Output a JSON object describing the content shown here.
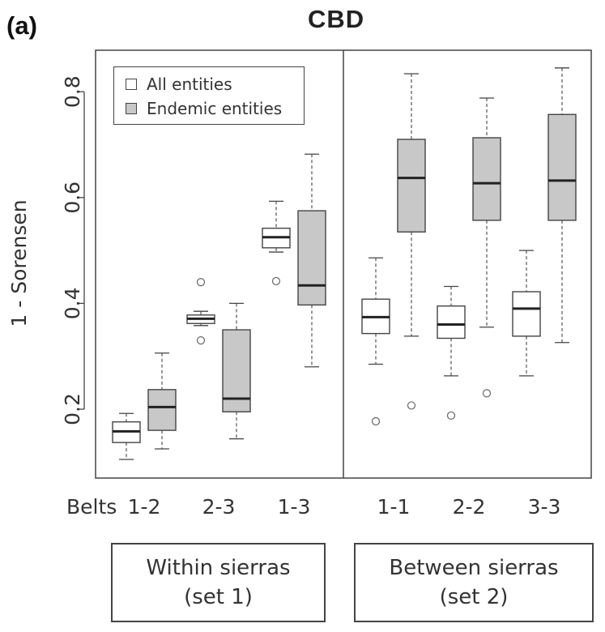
{
  "panel_label": "(a)",
  "chart_data": {
    "type": "box",
    "title": "CBD",
    "xlabel": "Belts",
    "ylabel": "1 - Sorensen",
    "ylim": [
      0.1,
      0.85
    ],
    "yticks": [
      0.2,
      0.4,
      0.6,
      0.8
    ],
    "ytick_labels": [
      "0.2",
      "0.4",
      "0.6",
      "0.8"
    ],
    "categories": [
      "1-2",
      "2-3",
      "1-3",
      "1-1",
      "2-2",
      "3-3"
    ],
    "legend": [
      {
        "name": "All entities",
        "color": "#ffffff"
      },
      {
        "name": "Endemic entities",
        "color": "#c8c8c8"
      }
    ],
    "legend_placement": "top-left",
    "series": [
      {
        "name": "All entities",
        "color": "#ffffff",
        "boxes": [
          {
            "category": "1-2",
            "min": 0.105,
            "q1": 0.137,
            "median": 0.158,
            "q3": 0.176,
            "max": 0.192,
            "outliers": []
          },
          {
            "category": "2-3",
            "min": 0.358,
            "q1": 0.362,
            "median": 0.371,
            "q3": 0.378,
            "max": 0.385,
            "outliers": [
              0.44,
              0.33
            ]
          },
          {
            "category": "1-3",
            "min": 0.497,
            "q1": 0.505,
            "median": 0.525,
            "q3": 0.542,
            "max": 0.593,
            "outliers": [
              0.442
            ]
          },
          {
            "category": "1-1",
            "min": 0.285,
            "q1": 0.343,
            "median": 0.374,
            "q3": 0.408,
            "max": 0.486,
            "outliers": [
              0.177
            ]
          },
          {
            "category": "2-2",
            "min": 0.263,
            "q1": 0.334,
            "median": 0.36,
            "q3": 0.395,
            "max": 0.432,
            "outliers": [
              0.188
            ]
          },
          {
            "category": "3-3",
            "min": 0.263,
            "q1": 0.338,
            "median": 0.39,
            "q3": 0.422,
            "max": 0.5,
            "outliers": []
          }
        ]
      },
      {
        "name": "Endemic entities",
        "color": "#c8c8c8",
        "boxes": [
          {
            "category": "1-2",
            "min": 0.125,
            "q1": 0.16,
            "median": 0.204,
            "q3": 0.237,
            "max": 0.306,
            "outliers": []
          },
          {
            "category": "2-3",
            "min": 0.144,
            "q1": 0.195,
            "median": 0.22,
            "q3": 0.35,
            "max": 0.4,
            "outliers": []
          },
          {
            "category": "1-3",
            "min": 0.28,
            "q1": 0.397,
            "median": 0.434,
            "q3": 0.575,
            "max": 0.682,
            "outliers": []
          },
          {
            "category": "1-1",
            "min": 0.338,
            "q1": 0.535,
            "median": 0.637,
            "q3": 0.71,
            "max": 0.834,
            "outliers": [
              0.207
            ]
          },
          {
            "category": "2-2",
            "min": 0.355,
            "q1": 0.557,
            "median": 0.627,
            "q3": 0.713,
            "max": 0.788,
            "outliers": [
              0.23
            ]
          },
          {
            "category": "3-3",
            "min": 0.326,
            "q1": 0.557,
            "median": 0.632,
            "q3": 0.757,
            "max": 0.845,
            "outliers": []
          }
        ]
      }
    ],
    "groups": [
      {
        "label_line1": "Within sierras",
        "label_line2": "(set 1)"
      },
      {
        "label_line1": "Between sierras",
        "label_line2": "(set 2)"
      }
    ],
    "grid": false
  }
}
